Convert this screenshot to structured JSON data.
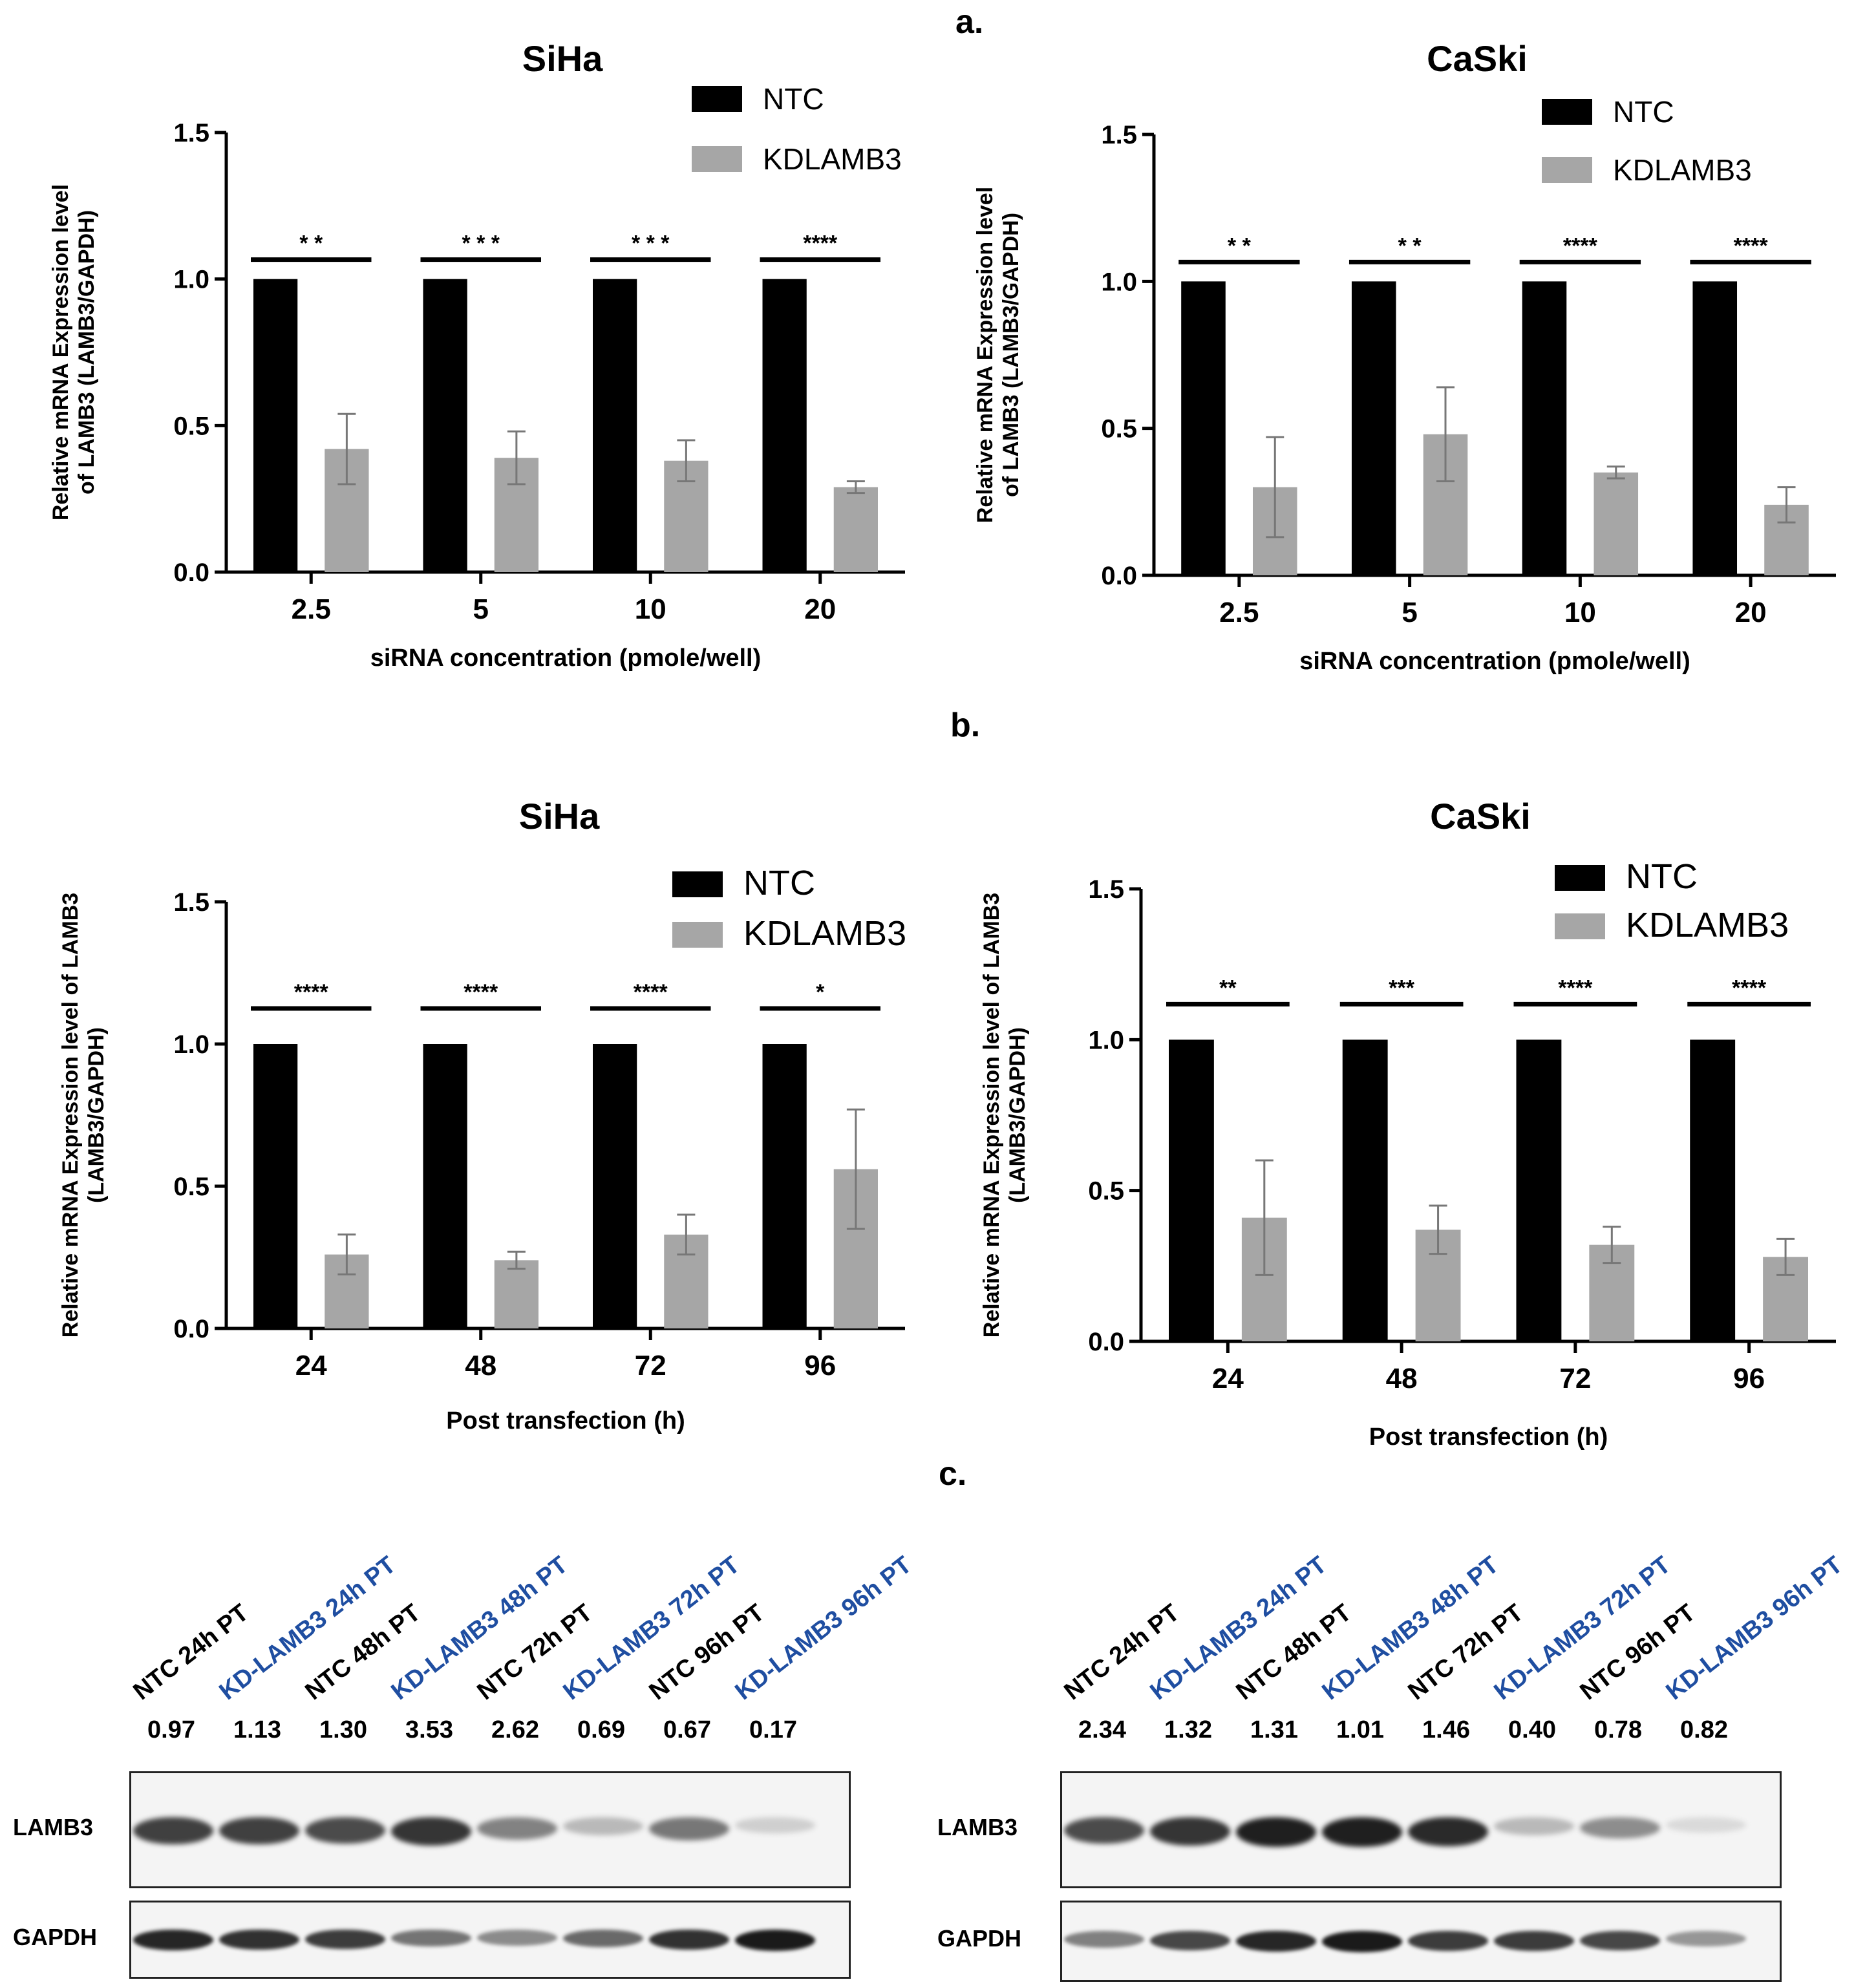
{
  "panel_labels": [
    "a.",
    "b.",
    "c."
  ],
  "colors": {
    "ntc": "#000000",
    "kd": "#a6a6a6",
    "kd_label": "#1f4ea1"
  },
  "chart_data": [
    {
      "type": "bar",
      "title": "SiHa",
      "xlabel": "siRNA concentration (pmole/well)",
      "ylabel": [
        "Relative mRNA Expression level",
        "of LAMB3 (LAMB3/GAPDH)"
      ],
      "categories": [
        "2.5",
        "5",
        "10",
        "20"
      ],
      "ylim": [
        0,
        1.5
      ],
      "yticks": [
        "0.0",
        "0.5",
        "1.0",
        "1.5"
      ],
      "series": [
        {
          "name": "NTC",
          "values": [
            1.0,
            1.0,
            1.0,
            1.0
          ]
        },
        {
          "name": "KDLAMB3",
          "values": [
            0.42,
            0.39,
            0.38,
            0.29
          ],
          "errors": [
            0.12,
            0.09,
            0.07,
            0.02
          ]
        }
      ],
      "significance": [
        "* *",
        "* * *",
        "* * *",
        "****"
      ]
    },
    {
      "type": "bar",
      "title": "CaSki",
      "xlabel": "siRNA concentration (pmole/well)",
      "ylabel": [
        "Relative mRNA Expression level",
        "of LAMB3 (LAMB3/GAPDH)"
      ],
      "categories": [
        "2.5",
        "5",
        "10",
        "20"
      ],
      "ylim": [
        0,
        1.5
      ],
      "yticks": [
        "0.0",
        "0.5",
        "1.0",
        "1.5"
      ],
      "series": [
        {
          "name": "NTC",
          "values": [
            1.0,
            1.0,
            1.0,
            1.0
          ]
        },
        {
          "name": "KDLAMB3",
          "values": [
            0.3,
            0.48,
            0.35,
            0.24
          ],
          "errors": [
            0.17,
            0.16,
            0.02,
            0.06
          ]
        }
      ],
      "significance": [
        "* *",
        "* *",
        "****",
        "****"
      ]
    },
    {
      "type": "bar",
      "title": "SiHa",
      "xlabel": "Post transfection (h)",
      "ylabel": [
        "Relative mRNA Expression level of LAMB3",
        "(LAMB3/GAPDH)"
      ],
      "categories": [
        "24",
        "48",
        "72",
        "96"
      ],
      "ylim": [
        0,
        1.5
      ],
      "yticks": [
        "0.0",
        "0.5",
        "1.0",
        "1.5"
      ],
      "series": [
        {
          "name": "NTC",
          "values": [
            1.0,
            1.0,
            1.0,
            1.0
          ]
        },
        {
          "name": "KDLAMB3",
          "values": [
            0.26,
            0.24,
            0.33,
            0.56
          ],
          "errors": [
            0.07,
            0.03,
            0.07,
            0.21
          ]
        }
      ],
      "significance": [
        "****",
        "****",
        "****",
        "*"
      ]
    },
    {
      "type": "bar",
      "title": "CaSki",
      "xlabel": "Post transfection (h)",
      "ylabel": [
        "Relative mRNA Expression level of LAMB3",
        "(LAMB3/GAPDH)"
      ],
      "categories": [
        "24",
        "48",
        "72",
        "96"
      ],
      "ylim": [
        0,
        1.5
      ],
      "yticks": [
        "0.0",
        "0.5",
        "1.0",
        "1.5"
      ],
      "series": [
        {
          "name": "NTC",
          "values": [
            1.0,
            1.0,
            1.0,
            1.0
          ]
        },
        {
          "name": "KDLAMB3",
          "values": [
            0.41,
            0.37,
            0.32,
            0.28
          ],
          "errors": [
            0.19,
            0.08,
            0.06,
            0.06
          ]
        }
      ],
      "significance": [
        "**",
        "***",
        "****",
        "****"
      ]
    }
  ],
  "blots": [
    {
      "lanes": [
        "NTC 24h PT",
        "KD-LAMB3 24h PT",
        "NTC 48h PT",
        "KD-LAMB3 48h PT",
        "NTC 72h PT",
        "KD-LAMB3 72h PT",
        "NTC 96h PT",
        "KD-LAMB3 96h PT"
      ],
      "lane_types": [
        "ntc",
        "kd",
        "ntc",
        "kd",
        "ntc",
        "kd",
        "ntc",
        "kd"
      ],
      "densities": [
        "0.97",
        "1.13",
        "1.30",
        "3.53",
        "2.62",
        "0.69",
        "0.67",
        "0.17"
      ],
      "rows": [
        "LAMB3",
        "GAPDH"
      ],
      "lamb3_intensity": [
        0.8,
        0.8,
        0.75,
        0.85,
        0.5,
        0.25,
        0.55,
        0.15
      ],
      "gapdh_intensity": [
        0.9,
        0.85,
        0.8,
        0.55,
        0.45,
        0.6,
        0.85,
        0.95
      ]
    },
    {
      "lanes": [
        "NTC 24h PT",
        "KD-LAMB3 24h PT",
        "NTC 48h PT",
        "KD-LAMB3 48h PT",
        "NTC 72h PT",
        "KD-LAMB3 72h PT",
        "NTC 96h PT",
        "KD-LAMB3 96h PT"
      ],
      "lane_types": [
        "ntc",
        "kd",
        "ntc",
        "kd",
        "ntc",
        "kd",
        "ntc",
        "kd"
      ],
      "densities": [
        "2.34",
        "1.32",
        "1.31",
        "1.01",
        "1.46",
        "0.40",
        "0.78",
        "0.82"
      ],
      "rows": [
        "LAMB3",
        "GAPDH"
      ],
      "lamb3_intensity": [
        0.75,
        0.85,
        0.95,
        0.95,
        0.9,
        0.25,
        0.45,
        0.1
      ],
      "gapdh_intensity": [
        0.5,
        0.75,
        0.9,
        0.95,
        0.8,
        0.8,
        0.75,
        0.4
      ]
    }
  ]
}
